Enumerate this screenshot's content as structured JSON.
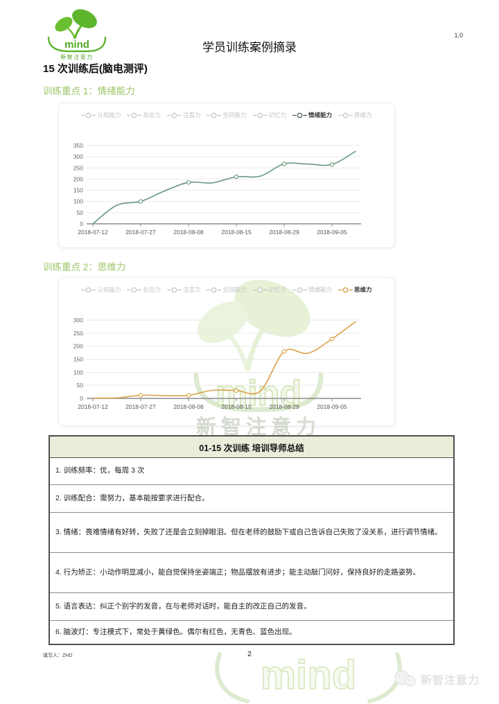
{
  "page": {
    "title": "学员训练案例摘录",
    "version": "1.0",
    "page_number": "2",
    "filled_by": "填写人：ZHD"
  },
  "logo": {
    "brand": "mind",
    "subtext": "新智注意力"
  },
  "headings": {
    "section": "15 次训练后(脑电测评)",
    "focus1": "训练重点 1：情绪能力",
    "focus2": "训练重点 2：思维力"
  },
  "chart_data": [
    {
      "type": "line",
      "title": "训练重点 1：情绪能力",
      "legend": [
        "认知能力",
        "反应力",
        "注意力",
        "空间能力",
        "记忆力",
        "情绪能力",
        "思维力"
      ],
      "active_series": "情绪能力",
      "legend_position": "top",
      "grid": true,
      "x_tick_labels": [
        "2018-07-12",
        "2018-07-27",
        "2018-08-08",
        "2018-08-15",
        "2018-08-29",
        "2018-09-05"
      ],
      "label_indices": [
        0,
        2,
        4,
        6,
        8,
        10
      ],
      "marker_indices": [
        2,
        4,
        6,
        8,
        10
      ],
      "ylim": [
        0,
        350
      ],
      "ytick_step": 50,
      "series": [
        {
          "name": "情绪能力",
          "color": "#6f9c82",
          "legend_marker_color": "#57645c",
          "values": [
            0,
            83,
            100,
            147,
            185,
            183,
            210,
            213,
            268,
            267,
            265,
            325
          ]
        }
      ]
    },
    {
      "type": "line",
      "title": "训练重点 2：思维力",
      "legend": [
        "认知能力",
        "反应力",
        "注意力",
        "空间能力",
        "记忆力",
        "情绪能力",
        "思维力"
      ],
      "active_series": "思维力",
      "legend_position": "top",
      "grid": true,
      "x_tick_labels": [
        "2018-07-12",
        "2018-07-27",
        "2018-08-08",
        "2018-08-15",
        "2018-08-29",
        "2018-09-05"
      ],
      "label_indices": [
        0,
        2,
        4,
        6,
        8,
        10
      ],
      "marker_indices": [
        2,
        4,
        6,
        8,
        10
      ],
      "ylim": [
        0,
        300
      ],
      "ytick_step": 50,
      "series": [
        {
          "name": "思维力",
          "color": "#dda452",
          "legend_marker_color": "#d2a24a",
          "values": [
            1,
            2,
            12,
            11,
            12,
            31,
            30,
            28,
            180,
            173,
            228,
            295
          ]
        }
      ]
    }
  ],
  "summary_table": {
    "header": "01-15 次训练 培训导师总结",
    "rows": [
      "1. 训练频率：优，每周 3 次",
      "2. 训练配合：需努力，基本能按要求进行配合。",
      "3. 情绪：畏难情绪有好转，失败了还是会立刻掉眼泪。但在老师的鼓励下或自己告诉自己失败了没关系，进行调节情绪。",
      "4. 行为矫正：小动作明显减小，能自觉保持坐姿端正；物品摆放有进步；能主动敲门问好，保持良好的走路姿势。",
      "5. 语言表达：纠正个别字的发音，在与老师对话时，能自主的改正自己的发音。",
      "6. 脑波灯：专注模式下，常处于黄绿色。偶尔有红色，无青色、蓝色出现。"
    ]
  },
  "watermark": {
    "brand": "mind",
    "subtext": "新智注意力"
  },
  "footer_logo": {
    "label": "新智注意力"
  },
  "colors": {
    "accent_green": "#9bc566",
    "logo_green": "#5cb52c",
    "line_green": "#6f9c82",
    "line_orange": "#dda452",
    "table_header_bg": "#e9eedb"
  }
}
